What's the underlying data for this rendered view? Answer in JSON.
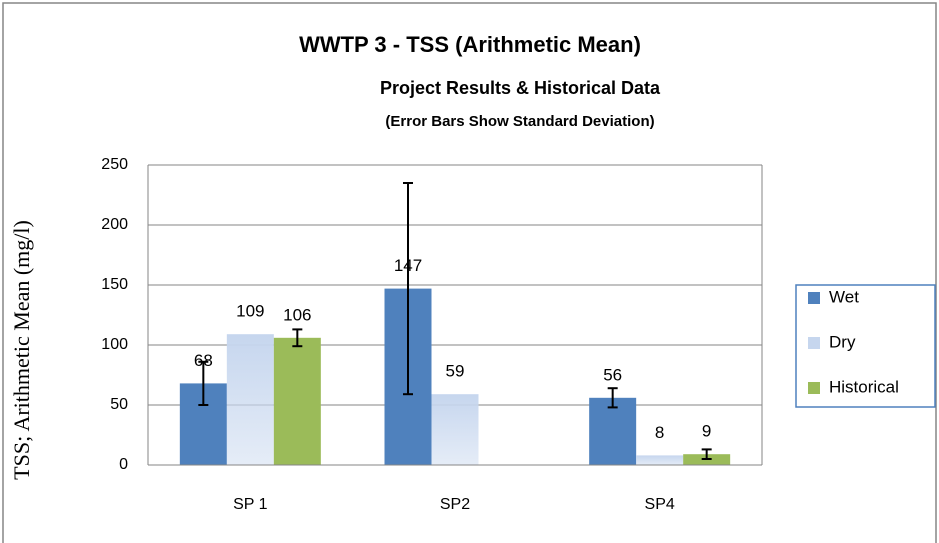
{
  "chart_data": {
    "type": "bar",
    "title": "WWTP 3 - TSS (Arithmetic Mean)",
    "subtitle": "Project Results & Historical Data",
    "note": "(Error Bars Show Standard Deviation)",
    "y_label": "TSS; Arithmetic Mean (mg/l)",
    "categories": [
      "SP 1",
      "SP2",
      "SP4"
    ],
    "series": [
      {
        "name": "Wet",
        "color": "#4f81bd",
        "values": [
          68,
          147,
          56
        ],
        "errors": [
          18,
          88,
          8
        ]
      },
      {
        "name": "Dry",
        "color": "#c6d6ee",
        "values": [
          109,
          59,
          8
        ]
      },
      {
        "name": "Historical",
        "color": "#9bbb59",
        "values": [
          106,
          null,
          9
        ],
        "errors": [
          7,
          null,
          4
        ]
      }
    ],
    "ylim": [
      0,
      250
    ],
    "yticks": [
      0,
      50,
      100,
      150,
      200,
      250
    ],
    "grid": true,
    "legend": "right"
  }
}
